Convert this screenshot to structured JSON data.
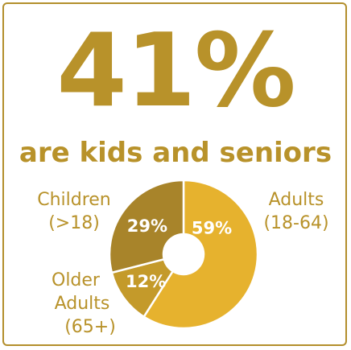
{
  "headline": "41%",
  "subhead": "are kids and seniors",
  "chart_data": {
    "type": "pie",
    "style": "donut",
    "slices": [
      {
        "name": "Adults",
        "range": "(18-64)",
        "value": 59,
        "label": "59%",
        "color": "#e6b22e"
      },
      {
        "name": "Older Adults",
        "range": "(65+)",
        "value": 12,
        "label": "12%",
        "color": "#c49a2a"
      },
      {
        "name": "Children",
        "range": "(>18)",
        "value": 29,
        "label": "29%",
        "color": "#a8842a"
      }
    ],
    "border_color": "#b38f2c",
    "text_color": "#b8922a"
  }
}
